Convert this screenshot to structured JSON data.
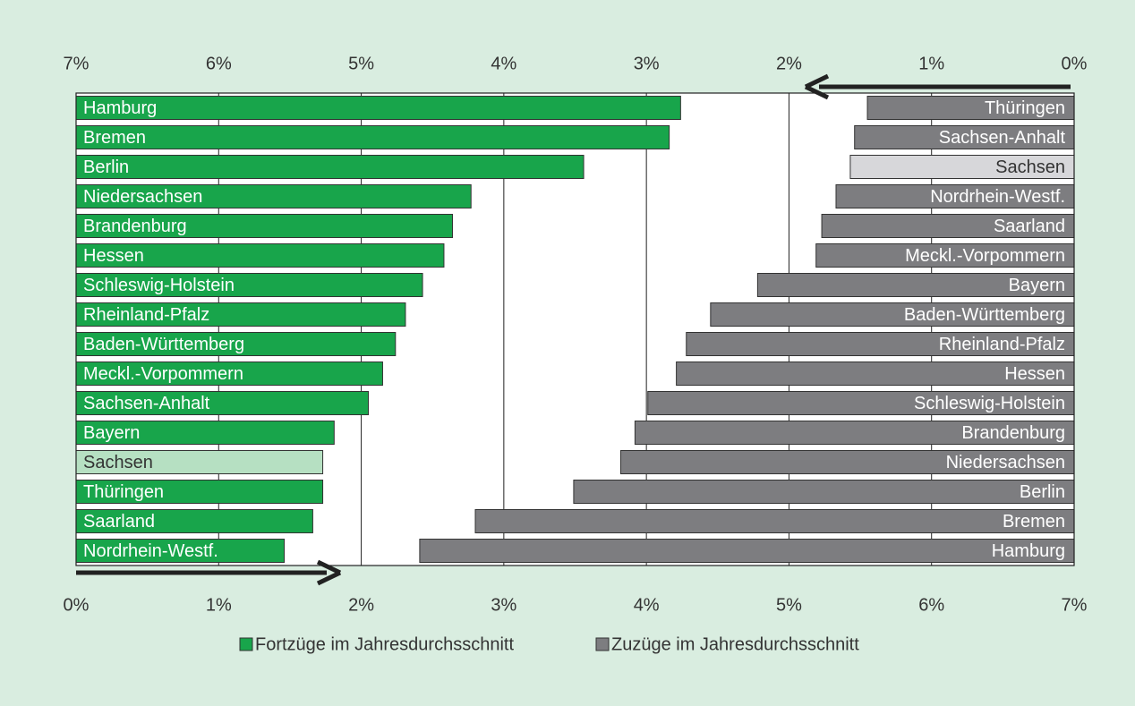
{
  "chart_data": {
    "type": "bar",
    "orientation": "horizontal",
    "xlim": [
      0,
      7
    ],
    "xticks": [
      {
        "value": 0,
        "label": "0%"
      },
      {
        "value": 1,
        "label": "1%"
      },
      {
        "value": 2,
        "label": "2%"
      },
      {
        "value": 3,
        "label": "3%"
      },
      {
        "value": 4,
        "label": "4%"
      },
      {
        "value": 5,
        "label": "5%"
      },
      {
        "value": 6,
        "label": "6%"
      },
      {
        "value": 7,
        "label": "7%"
      }
    ],
    "x2lim": [
      7,
      0
    ],
    "x2ticks": [
      {
        "value": 7,
        "label": "7%"
      },
      {
        "value": 6,
        "label": "6%"
      },
      {
        "value": 5,
        "label": "5%"
      },
      {
        "value": 4,
        "label": "4%"
      },
      {
        "value": 3,
        "label": "3%"
      },
      {
        "value": 2,
        "label": "2%"
      },
      {
        "value": 1,
        "label": "1%"
      },
      {
        "value": 0,
        "label": "0%"
      }
    ],
    "grid": true,
    "highlight": "Sachsen",
    "series": [
      {
        "name": "Fortzüge im Jahresdurchsschnitt",
        "color": "#18a54b",
        "highlight_color": "#b6e0c2",
        "axis": "x",
        "categories": [
          "Hamburg",
          "Bremen",
          "Berlin",
          "Niedersachsen",
          "Brandenburg",
          "Hessen",
          "Schleswig-Holstein",
          "Rheinland-Pfalz",
          "Baden-Württemberg",
          "Meckl.-Vorpommern",
          "Sachsen-Anhalt",
          "Bayern",
          "Sachsen",
          "Thüringen",
          "Saarland",
          "Nordrhein-Westf."
        ],
        "values": [
          4.24,
          4.16,
          3.56,
          2.77,
          2.64,
          2.58,
          2.43,
          2.31,
          2.24,
          2.15,
          2.05,
          1.81,
          1.73,
          1.73,
          1.66,
          1.46
        ]
      },
      {
        "name": "Zuzüge im Jahresdurchsschnitt",
        "color": "#7d7d80",
        "highlight_color": "#d7d7da",
        "axis": "x2",
        "categories": [
          "Thüringen",
          "Sachsen-Anhalt",
          "Sachsen",
          "Nordrhein-Westf.",
          "Saarland",
          "Meckl.-Vorpommern",
          "Bayern",
          "Baden-Württemberg",
          "Rheinland-Pfalz",
          "Hessen",
          "Schleswig-Holstein",
          "Brandenburg",
          "Niedersachsen",
          "Berlin",
          "Bremen",
          "Hamburg"
        ],
        "values": [
          1.45,
          1.54,
          1.57,
          1.67,
          1.77,
          1.81,
          2.22,
          2.55,
          2.72,
          2.79,
          2.99,
          3.08,
          3.18,
          3.51,
          4.2,
          4.59
        ]
      }
    ]
  }
}
